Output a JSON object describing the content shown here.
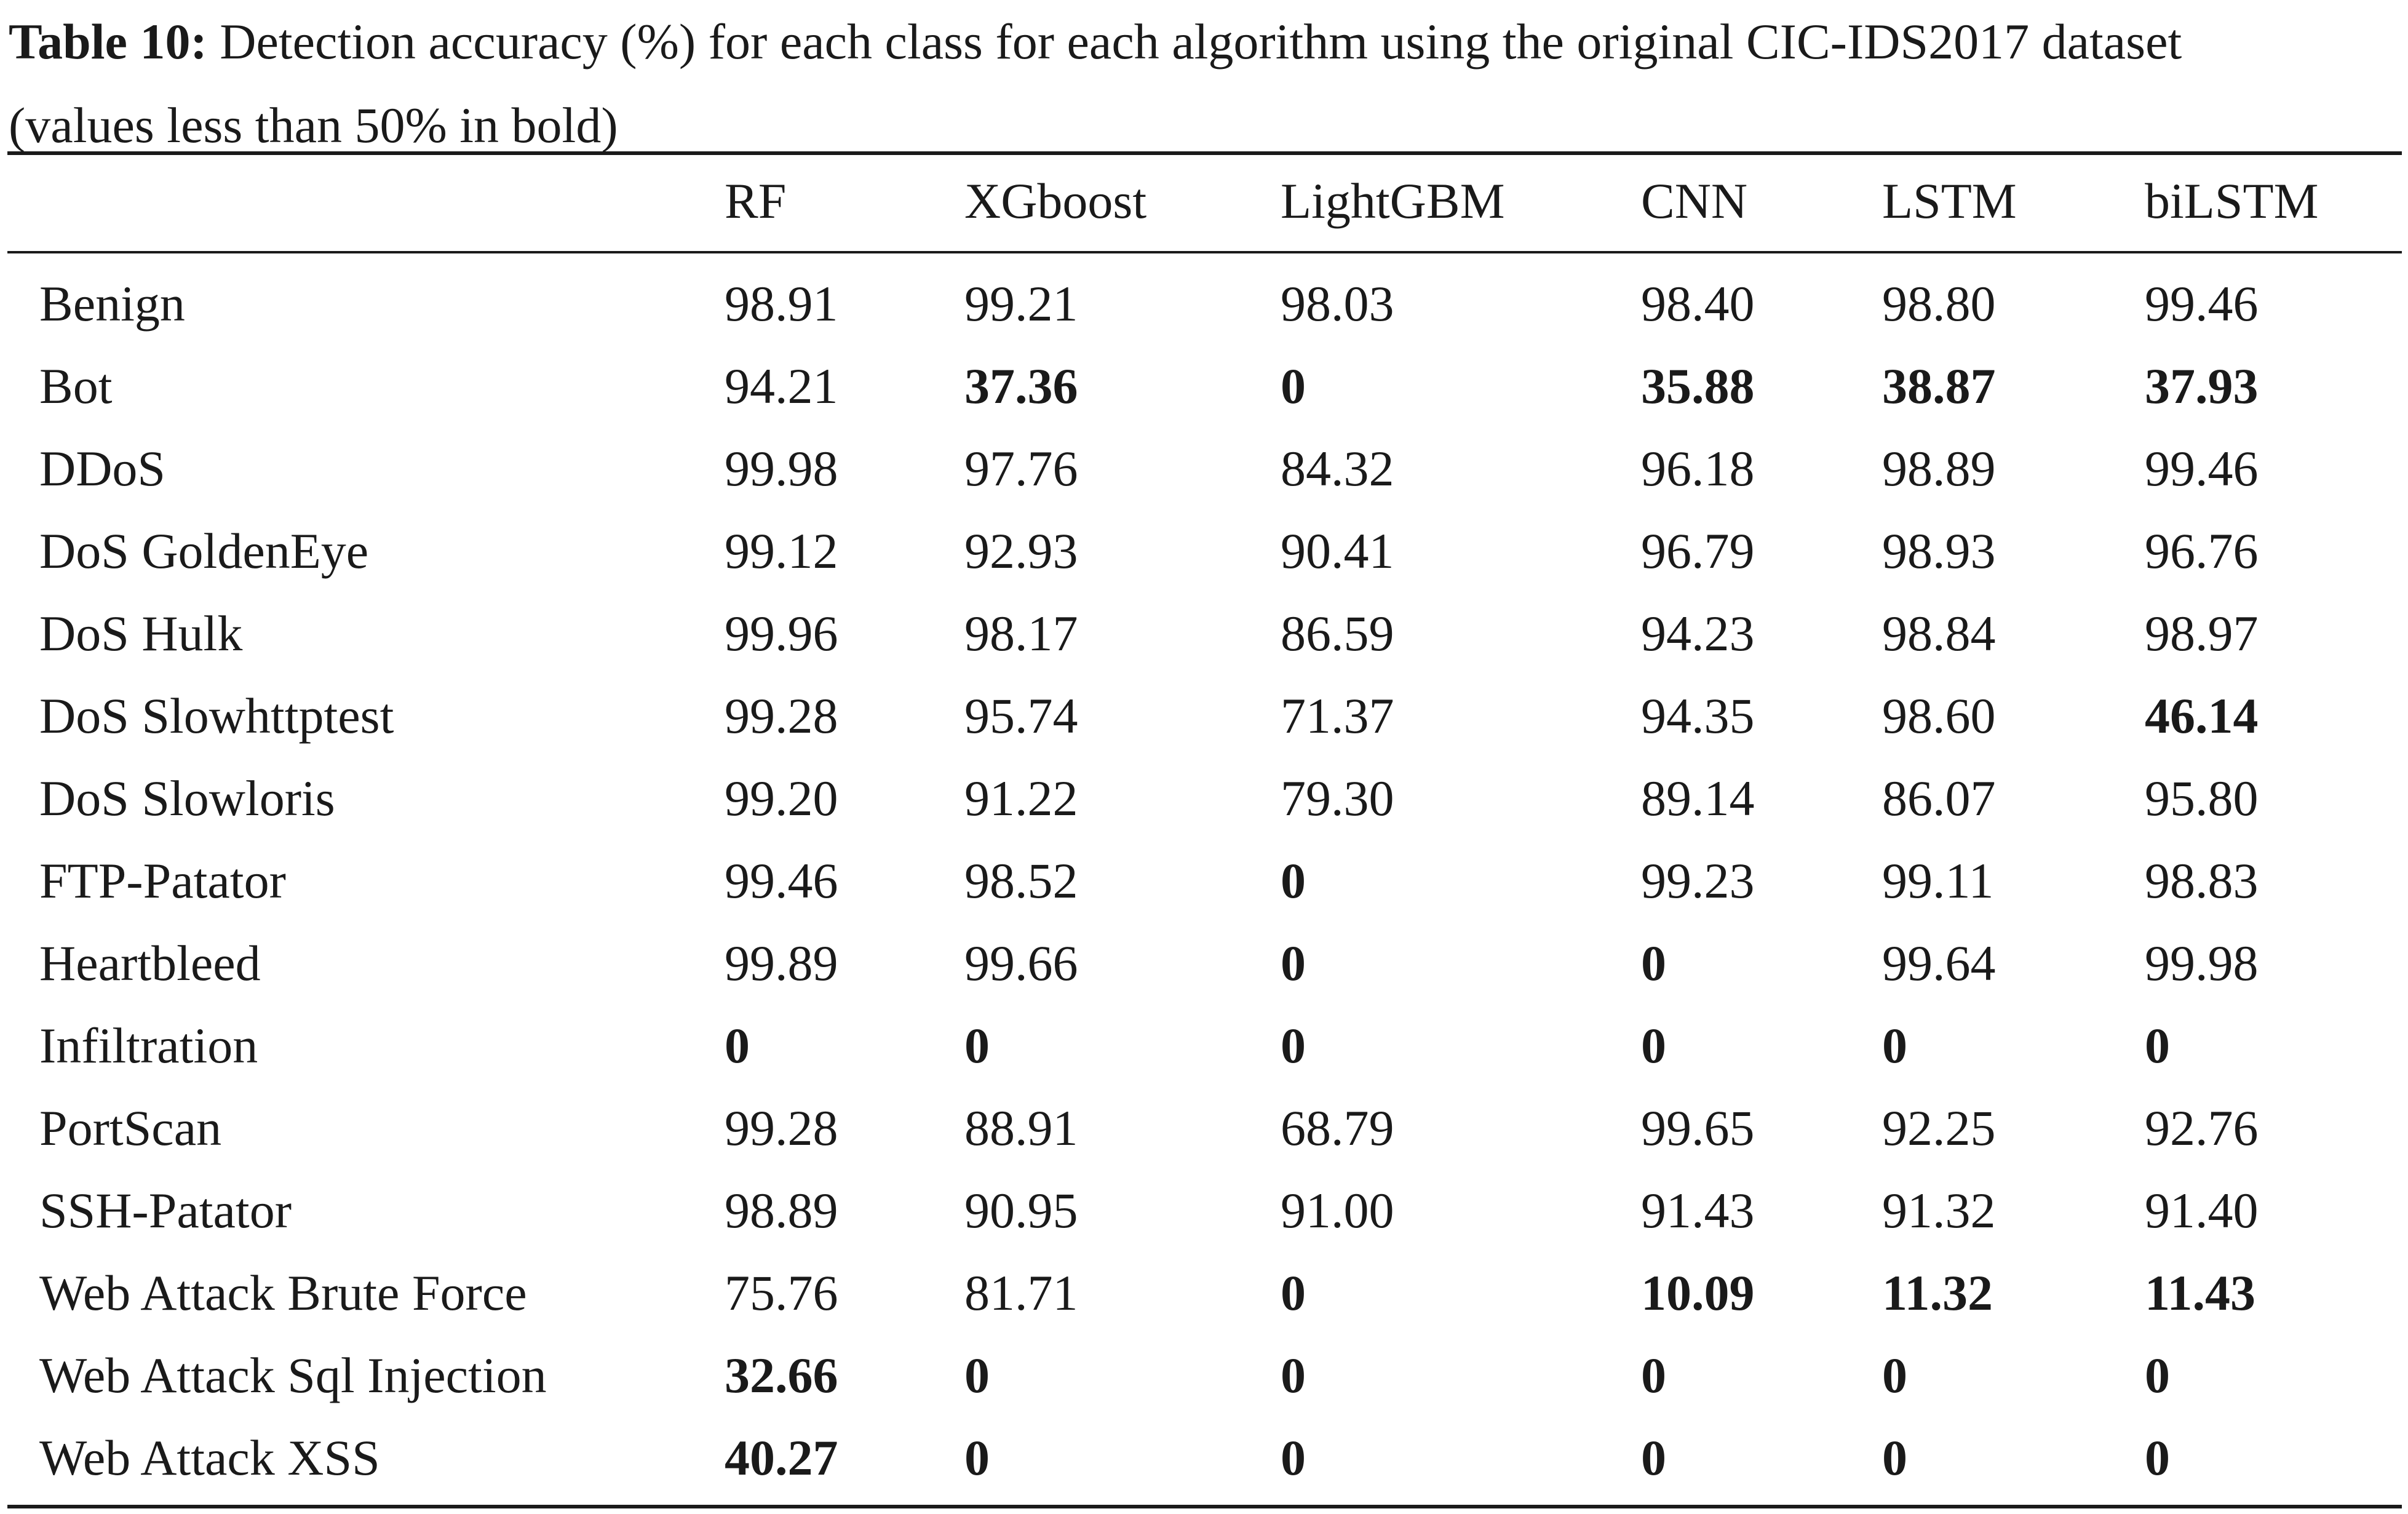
{
  "caption": {
    "label": "Table 10:",
    "text_line1": " Detection accuracy (%) for each class for each algorithm using the original CIC-IDS2017 dataset",
    "text_line2": "(values less than 50% in bold)"
  },
  "table": {
    "columns": [
      "",
      "RF",
      "XGboost",
      "LightGBM",
      "CNN",
      "LSTM",
      "biLSTM"
    ],
    "rows": [
      {
        "label": "Benign",
        "values": [
          "98.91",
          "99.21",
          "98.03",
          "98.40",
          "98.80",
          "99.46"
        ],
        "bold": [
          false,
          false,
          false,
          false,
          false,
          false
        ]
      },
      {
        "label": "Bot",
        "values": [
          "94.21",
          "37.36",
          "0",
          "35.88",
          "38.87",
          "37.93"
        ],
        "bold": [
          false,
          true,
          true,
          true,
          true,
          true
        ]
      },
      {
        "label": "DDoS",
        "values": [
          "99.98",
          "97.76",
          "84.32",
          "96.18",
          "98.89",
          "99.46"
        ],
        "bold": [
          false,
          false,
          false,
          false,
          false,
          false
        ]
      },
      {
        "label": "DoS GoldenEye",
        "values": [
          "99.12",
          "92.93",
          "90.41",
          "96.79",
          "98.93",
          "96.76"
        ],
        "bold": [
          false,
          false,
          false,
          false,
          false,
          false
        ]
      },
      {
        "label": "DoS Hulk",
        "values": [
          "99.96",
          "98.17",
          "86.59",
          "94.23",
          "98.84",
          "98.97"
        ],
        "bold": [
          false,
          false,
          false,
          false,
          false,
          false
        ]
      },
      {
        "label": "DoS Slowhttptest",
        "values": [
          "99.28",
          "95.74",
          "71.37",
          "94.35",
          "98.60",
          "46.14"
        ],
        "bold": [
          false,
          false,
          false,
          false,
          false,
          true
        ]
      },
      {
        "label": "DoS Slowloris",
        "values": [
          "99.20",
          "91.22",
          "79.30",
          "89.14",
          "86.07",
          "95.80"
        ],
        "bold": [
          false,
          false,
          false,
          false,
          false,
          false
        ]
      },
      {
        "label": "FTP-Patator",
        "values": [
          "99.46",
          "98.52",
          "0",
          "99.23",
          "99.11",
          "98.83"
        ],
        "bold": [
          false,
          false,
          true,
          false,
          false,
          false
        ]
      },
      {
        "label": "Heartbleed",
        "values": [
          "99.89",
          "99.66",
          "0",
          "0",
          "99.64",
          "99.98"
        ],
        "bold": [
          false,
          false,
          true,
          true,
          false,
          false
        ]
      },
      {
        "label": "Infiltration",
        "values": [
          "0",
          "0",
          "0",
          "0",
          "0",
          "0"
        ],
        "bold": [
          true,
          true,
          true,
          true,
          true,
          true
        ]
      },
      {
        "label": "PortScan",
        "values": [
          "99.28",
          "88.91",
          "68.79",
          "99.65",
          "92.25",
          "92.76"
        ],
        "bold": [
          false,
          false,
          false,
          false,
          false,
          false
        ]
      },
      {
        "label": "SSH-Patator",
        "values": [
          "98.89",
          "90.95",
          "91.00",
          "91.43",
          "91.32",
          "91.40"
        ],
        "bold": [
          false,
          false,
          false,
          false,
          false,
          false
        ]
      },
      {
        "label": "Web Attack Brute Force",
        "values": [
          "75.76",
          "81.71",
          "0",
          "10.09",
          "11.32",
          "11.43"
        ],
        "bold": [
          false,
          false,
          true,
          true,
          true,
          true
        ]
      },
      {
        "label": "Web Attack Sql Injection",
        "values": [
          "32.66",
          "0",
          "0",
          "0",
          "0",
          "0"
        ],
        "bold": [
          true,
          true,
          true,
          true,
          true,
          true
        ]
      },
      {
        "label": "Web Attack XSS",
        "values": [
          "40.27",
          "0",
          "0",
          "0",
          "0",
          "0"
        ],
        "bold": [
          true,
          true,
          true,
          true,
          true,
          true
        ]
      }
    ]
  }
}
